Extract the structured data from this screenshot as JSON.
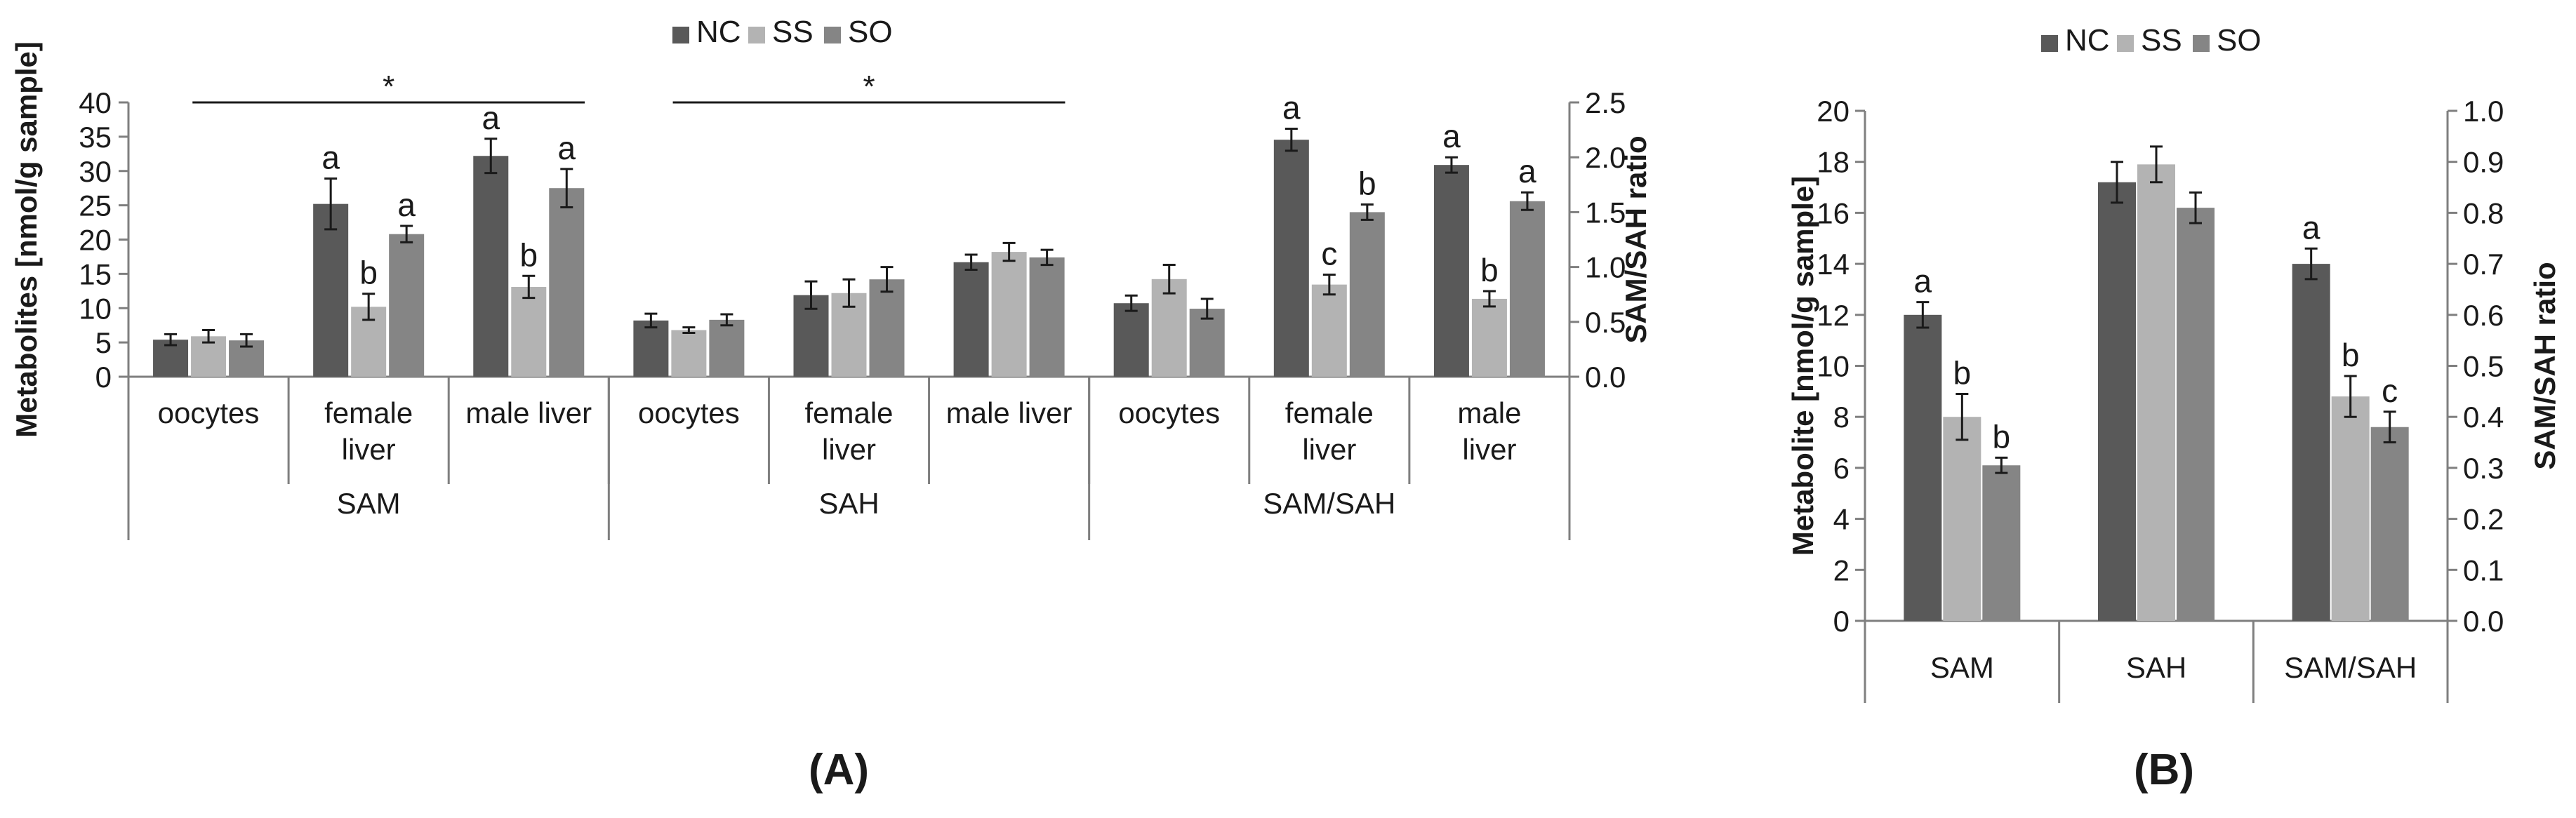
{
  "colors": {
    "NC": "#595959",
    "SS": "#b3b3b3",
    "SO": "#858585",
    "axis": "#7f7f7f",
    "text": "#1a1a1a"
  },
  "panel_labels": [
    "(A)",
    "(B)"
  ],
  "chart_data": [
    {
      "type": "bar",
      "panel": "(A)",
      "legend": [
        "NC",
        "SS",
        "SO"
      ],
      "legend_position": "top-center",
      "ylabel": "Metabolites [nmol/g sample]",
      "y2label": "SAM/SAH ratio",
      "ylim": [
        0,
        40
      ],
      "yticks": [
        "0",
        "5",
        "10",
        "15",
        "20",
        "25",
        "30",
        "35",
        "40"
      ],
      "y2lim": [
        0,
        2.5
      ],
      "y2ticks": [
        "0.0",
        "0.5",
        "1.0",
        "1.5",
        "2.0",
        "2.5"
      ],
      "groups": [
        {
          "name": "SAM",
          "axis": "left",
          "significance": "*",
          "categories": [
            {
              "label": [
                "oocytes"
              ],
              "values": [
                5.4,
                5.9,
                5.3
              ],
              "errors": [
                0.8,
                0.9,
                0.9
              ],
              "letters": [
                "",
                "",
                ""
              ]
            },
            {
              "label": [
                "female",
                "liver"
              ],
              "values": [
                25.2,
                10.2,
                20.8
              ],
              "errors": [
                3.7,
                1.9,
                1.2
              ],
              "letters": [
                "a",
                "b",
                "a"
              ]
            },
            {
              "label": [
                "male liver"
              ],
              "values": [
                32.2,
                13.1,
                27.5
              ],
              "errors": [
                2.5,
                1.6,
                2.8
              ],
              "letters": [
                "a",
                "b",
                "a"
              ]
            }
          ]
        },
        {
          "name": "SAH",
          "axis": "left",
          "significance": "*",
          "categories": [
            {
              "label": [
                "oocytes"
              ],
              "values": [
                8.2,
                6.8,
                8.3
              ],
              "errors": [
                1.0,
                0.4,
                0.8
              ],
              "letters": [
                "",
                "",
                ""
              ]
            },
            {
              "label": [
                "female",
                "liver"
              ],
              "values": [
                11.9,
                12.2,
                14.2
              ],
              "errors": [
                2.0,
                2.0,
                1.8
              ],
              "letters": [
                "",
                "",
                ""
              ]
            },
            {
              "label": [
                "male liver"
              ],
              "values": [
                16.7,
                18.2,
                17.4
              ],
              "errors": [
                1.1,
                1.3,
                1.1
              ],
              "letters": [
                "",
                "",
                ""
              ]
            }
          ]
        },
        {
          "name": "SAM/SAH",
          "axis": "right",
          "significance": "",
          "categories": [
            {
              "label": [
                "oocytes"
              ],
              "values": [
                0.67,
                0.89,
                0.62
              ],
              "errors": [
                0.07,
                0.13,
                0.09
              ],
              "letters": [
                "",
                "",
                ""
              ]
            },
            {
              "label": [
                "female",
                "liver"
              ],
              "values": [
                2.16,
                0.84,
                1.5
              ],
              "errors": [
                0.1,
                0.09,
                0.07
              ],
              "letters": [
                "a",
                "c",
                "b"
              ]
            },
            {
              "label": [
                "male",
                "liver"
              ],
              "values": [
                1.93,
                0.71,
                1.6
              ],
              "errors": [
                0.07,
                0.07,
                0.08
              ],
              "letters": [
                "a",
                "b",
                "a"
              ]
            }
          ]
        }
      ]
    },
    {
      "type": "bar",
      "panel": "(B)",
      "legend": [
        "NC",
        "SS",
        "SO"
      ],
      "legend_position": "top-center",
      "ylabel": "Metabolite [nmol/g sample]",
      "y2label": "SAM/SAH ratio",
      "ylim": [
        0,
        20
      ],
      "yticks": [
        "0",
        "2",
        "4",
        "6",
        "8",
        "10",
        "12",
        "14",
        "16",
        "18",
        "20"
      ],
      "y2lim": [
        0,
        1.0
      ],
      "y2ticks": [
        "0.0",
        "0.1",
        "0.2",
        "0.3",
        "0.4",
        "0.5",
        "0.6",
        "0.7",
        "0.8",
        "0.9",
        "1.0"
      ],
      "categories": [
        {
          "label": "SAM",
          "axis": "left",
          "values": [
            12.0,
            8.0,
            6.1
          ],
          "errors": [
            0.5,
            0.9,
            0.3
          ],
          "letters": [
            "a",
            "b",
            "b"
          ]
        },
        {
          "label": "SAH",
          "axis": "left",
          "values": [
            17.2,
            17.9,
            16.2
          ],
          "errors": [
            0.8,
            0.7,
            0.6
          ],
          "letters": [
            "",
            "",
            ""
          ]
        },
        {
          "label": "SAM/SAH",
          "axis": "right",
          "values": [
            0.7,
            0.44,
            0.38
          ],
          "errors": [
            0.03,
            0.04,
            0.03
          ],
          "letters": [
            "a",
            "b",
            "c"
          ]
        }
      ]
    }
  ]
}
